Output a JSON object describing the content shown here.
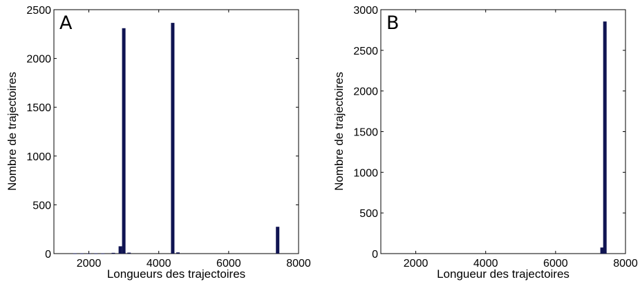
{
  "chart_data": [
    {
      "type": "bar",
      "panel_label": "A",
      "xlabel": "Longueurs des trajectoires",
      "ylabel": "Nombre de trajectoires",
      "xlim": [
        1000,
        8000
      ],
      "ylim": [
        0,
        2500
      ],
      "xticks": [
        "2000",
        "4000",
        "6000",
        "8000"
      ],
      "yticks": [
        "0",
        "500",
        "1000",
        "1500",
        "2000",
        "2500"
      ],
      "x": [
        1600,
        1800,
        2000,
        2200,
        2400,
        2700,
        2900,
        3000,
        3150,
        4400,
        4550,
        7400
      ],
      "values": [
        3,
        3,
        3,
        3,
        3,
        8,
        75,
        2310,
        10,
        2365,
        12,
        275
      ],
      "color": "#101452",
      "grid": false
    },
    {
      "type": "bar",
      "panel_label": "B",
      "xlabel": "Longueur des trajectoires",
      "ylabel": "Nombre de trajectoires",
      "xlim": [
        1000,
        8000
      ],
      "ylim": [
        0,
        3000
      ],
      "xticks": [
        "2000",
        "4000",
        "6000",
        "8000"
      ],
      "yticks": [
        "0",
        "500",
        "1000",
        "1500",
        "2000",
        "2500",
        "3000"
      ],
      "x": [
        7330,
        7410
      ],
      "values": [
        75,
        2855
      ],
      "color": "#101452",
      "grid": false
    }
  ]
}
